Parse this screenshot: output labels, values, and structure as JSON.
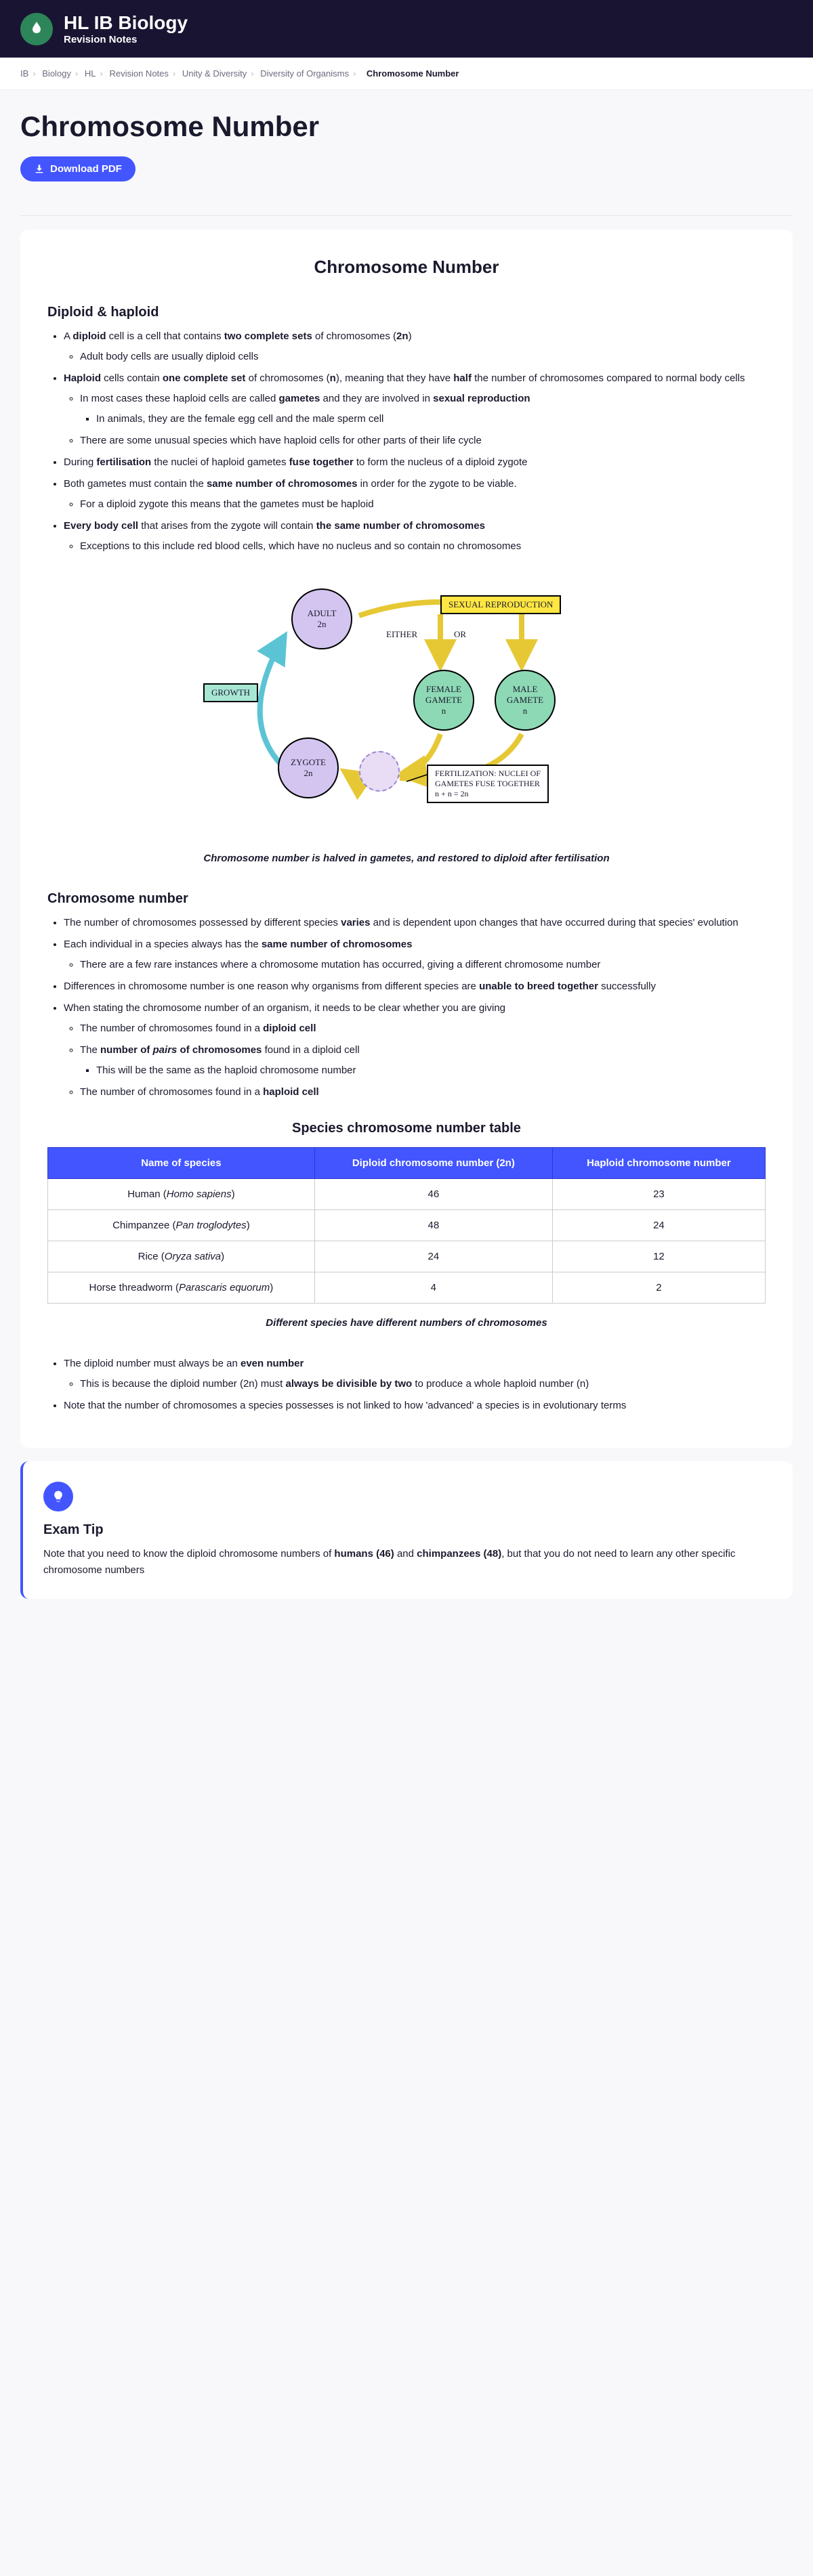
{
  "header": {
    "title": "HL IB Biology",
    "subtitle": "Revision Notes"
  },
  "breadcrumb": {
    "items": [
      "IB",
      "Biology",
      "HL",
      "Revision Notes",
      "Unity & Diversity",
      "Diversity of Organisms"
    ],
    "current": "Chromosome Number"
  },
  "page_title": "Chromosome Number",
  "download_label": "Download PDF",
  "section1": {
    "title": "Chromosome Number",
    "sub1_title": "Diploid & haploid",
    "sub2_title": "Chromosome number"
  },
  "diagram": {
    "adult": "ADULT",
    "adult_n": "2n",
    "zygote": "ZYGOTE",
    "zygote_n": "2n",
    "female": "FEMALE GAMETE",
    "female_n": "n",
    "male": "MALE GAMETE",
    "male_n": "n",
    "sexual": "SEXUAL  REPRODUCTION",
    "growth": "GROWTH",
    "either": "EITHER",
    "or": "OR",
    "fert_l1": "FERTILIZATION: NUCLEI OF",
    "fert_l2": "GAMETES FUSE TOGETHER",
    "fert_l3": "n + n = 2n",
    "colors": {
      "purple": "#d4c5f0",
      "green": "#8dd9b5",
      "yellow": "#ffe642",
      "teal": "#a8e6d4"
    }
  },
  "caption1": "Chromosome number is halved in gametes, and restored to diploid after fertilisation",
  "table": {
    "title": "Species chromosome number table",
    "headers": [
      "Name of species",
      "Diploid chromosome number (2n)",
      "Haploid chromosome number"
    ],
    "rows": [
      {
        "name": "Human",
        "sci": "Homo sapiens",
        "dip": "46",
        "hap": "23"
      },
      {
        "name": "Chimpanzee",
        "sci": "Pan troglodytes",
        "dip": "48",
        "hap": "24"
      },
      {
        "name": "Rice",
        "sci": "Oryza sativa",
        "dip": "24",
        "hap": "12"
      },
      {
        "name": "Horse threadworm",
        "sci": "Parascaris equorum",
        "dip": "4",
        "hap": "2"
      }
    ],
    "header_bg": "#4255ff"
  },
  "caption2": "Different species have different numbers of chromosomes",
  "tip": {
    "title": "Exam Tip"
  },
  "accent": "#4255ff"
}
